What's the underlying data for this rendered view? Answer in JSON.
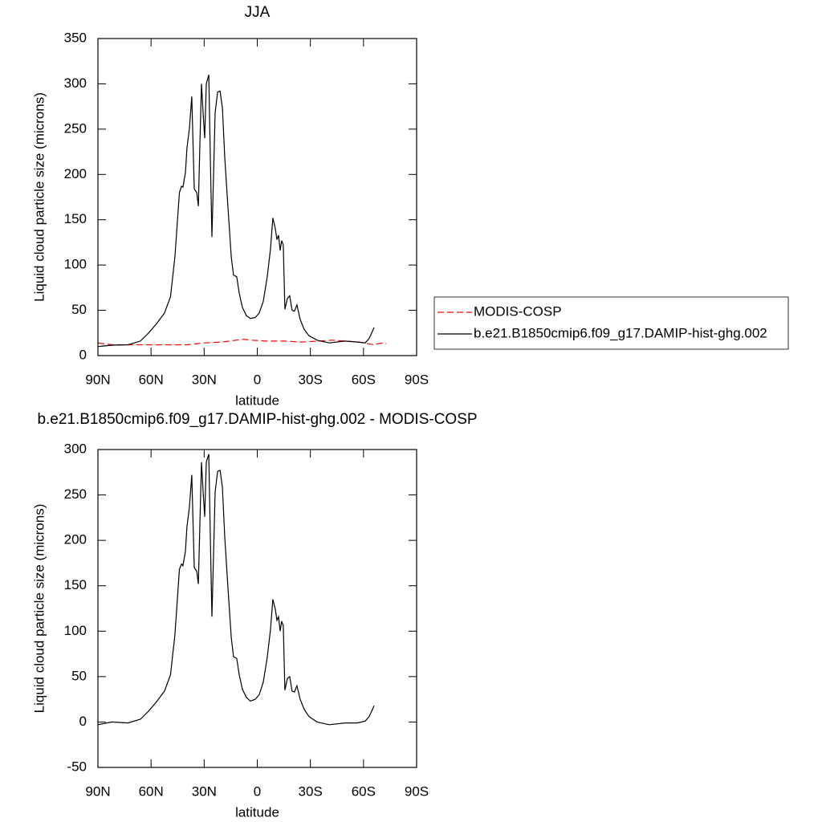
{
  "chart_data": [
    {
      "type": "line",
      "title": "JJA",
      "xlabel": "latitude",
      "ylabel": "Liquid cloud particle size (microns)",
      "xlim": [
        90,
        -90
      ],
      "xticks": [
        {
          "value": 90,
          "label": "90N"
        },
        {
          "value": 60,
          "label": "60N"
        },
        {
          "value": 30,
          "label": "30N"
        },
        0,
        {
          "value": -30,
          "label": "30S"
        },
        {
          "value": -60,
          "label": "60S"
        },
        {
          "value": -90,
          "label": "90S"
        }
      ],
      "ylim": [
        0,
        350
      ],
      "yticks": [
        0,
        50,
        100,
        150,
        200,
        250,
        300,
        350
      ],
      "legend": "outside-right",
      "series": [
        {
          "name": "MODIS-COSP",
          "color": "#ff0000",
          "dashed": true,
          "x": [
            90,
            82,
            70,
            55,
            40,
            30,
            20,
            12,
            8,
            3,
            -5,
            -15,
            -25,
            -35,
            -42,
            -50,
            -58,
            -63,
            -66,
            -68,
            -71,
            -73
          ],
          "values": [
            14,
            12,
            12,
            12,
            12,
            14,
            15,
            17,
            18,
            17,
            16,
            16,
            15,
            16,
            17,
            16,
            15,
            13,
            12,
            13,
            14,
            13
          ]
        },
        {
          "name": "b.e21.B1850cmip6.f09_g17.DAMIP-hist-ghg.002",
          "color": "#000000",
          "dashed": false,
          "x": [
            90,
            82,
            73,
            66,
            61.4,
            57,
            52.4,
            49,
            46.5,
            44,
            42.8,
            42,
            40.6,
            39.7,
            38.3,
            37,
            35.6,
            34.2,
            33.3,
            32.4,
            31.5,
            30.6,
            29.7,
            28.8,
            27.4,
            26.5,
            25.6,
            24.7,
            23.8,
            22.4,
            21,
            19.7,
            18.4,
            16.5,
            14.7,
            13.4,
            11.6,
            10.2,
            8.4,
            6.1,
            3.9,
            1.2,
            -1.1,
            -3.4,
            -5.6,
            -7.5,
            -8.8,
            -10.2,
            -11.1,
            -12,
            -12.9,
            -13.8,
            -14.7,
            -15.6,
            -17,
            -18.3,
            -19.7,
            -21,
            -22.4,
            -24.2,
            -26.5,
            -29.2,
            -33.8,
            -40.6,
            -49.6,
            -56.4,
            -61,
            -63.2,
            -66
          ],
          "values": [
            10,
            11.5,
            12,
            16,
            25,
            35,
            47,
            65,
            109,
            180,
            187,
            186,
            202,
            229,
            251,
            286,
            184,
            180,
            165,
            233,
            300,
            268,
            240,
            300,
            310,
            215,
            131,
            198,
            268,
            291,
            292,
            273,
            220,
            162,
            109,
            89,
            87,
            69,
            53,
            44,
            41,
            42,
            47,
            60,
            87,
            118,
            152,
            140,
            128,
            133,
            116,
            127,
            122,
            51,
            63,
            66,
            50,
            49,
            56,
            40,
            29,
            22,
            17,
            14,
            16,
            15,
            14,
            19,
            31
          ]
        }
      ]
    },
    {
      "type": "line",
      "title": "b.e21.B1850cmip6.f09_g17.DAMIP-hist-ghg.002 - MODIS-COSP",
      "xlabel": "latitude",
      "ylabel": "Liquid cloud particle size (microns)",
      "xlim": [
        90,
        -90
      ],
      "xticks": [
        {
          "value": 90,
          "label": "90N"
        },
        {
          "value": 60,
          "label": "60N"
        },
        {
          "value": 30,
          "label": "30N"
        },
        0,
        {
          "value": -30,
          "label": "30S"
        },
        {
          "value": -60,
          "label": "60S"
        },
        {
          "value": -90,
          "label": "90S"
        }
      ],
      "ylim": [
        -50,
        300
      ],
      "yticks": [
        -50,
        0,
        50,
        100,
        150,
        200,
        250,
        300
      ],
      "series": [
        {
          "color": "#000000",
          "dashed": false,
          "x": [
            90,
            82,
            73,
            66,
            61.4,
            57,
            52.4,
            49,
            46.5,
            44,
            42.8,
            42,
            40.6,
            39.7,
            38.3,
            37,
            35.6,
            34.2,
            33.3,
            32.4,
            31.5,
            30.6,
            29.7,
            28.8,
            27.4,
            26.5,
            25.6,
            24.7,
            23.8,
            22.4,
            21,
            19.7,
            18.4,
            16.5,
            14.7,
            13.4,
            11.6,
            10.2,
            8.4,
            6.1,
            3.9,
            1.2,
            -1.1,
            -3.4,
            -5.6,
            -7.5,
            -8.8,
            -10.2,
            -11.1,
            -12,
            -12.9,
            -13.8,
            -14.7,
            -15.6,
            -17,
            -18.3,
            -19.7,
            -21,
            -22.4,
            -24.2,
            -26.5,
            -29.2,
            -33.8,
            -40.6,
            -49.6,
            -56.4,
            -61,
            -63.2,
            -66
          ],
          "values": [
            -3,
            0,
            -1,
            3,
            12,
            22,
            34,
            52,
            96,
            168,
            174,
            172,
            188,
            215,
            237,
            272,
            170,
            166,
            152,
            218,
            286,
            254,
            226,
            286,
            295,
            200,
            116,
            183,
            253,
            276,
            277,
            258,
            205,
            146,
            93,
            72,
            70,
            52,
            36,
            27,
            23,
            25,
            30,
            44,
            71,
            102,
            135,
            124,
            112,
            116,
            100,
            111,
            106,
            35,
            48,
            50,
            34,
            33,
            40,
            25,
            14,
            6,
            0,
            -3,
            -1,
            -1,
            1,
            6,
            18
          ]
        }
      ]
    }
  ]
}
